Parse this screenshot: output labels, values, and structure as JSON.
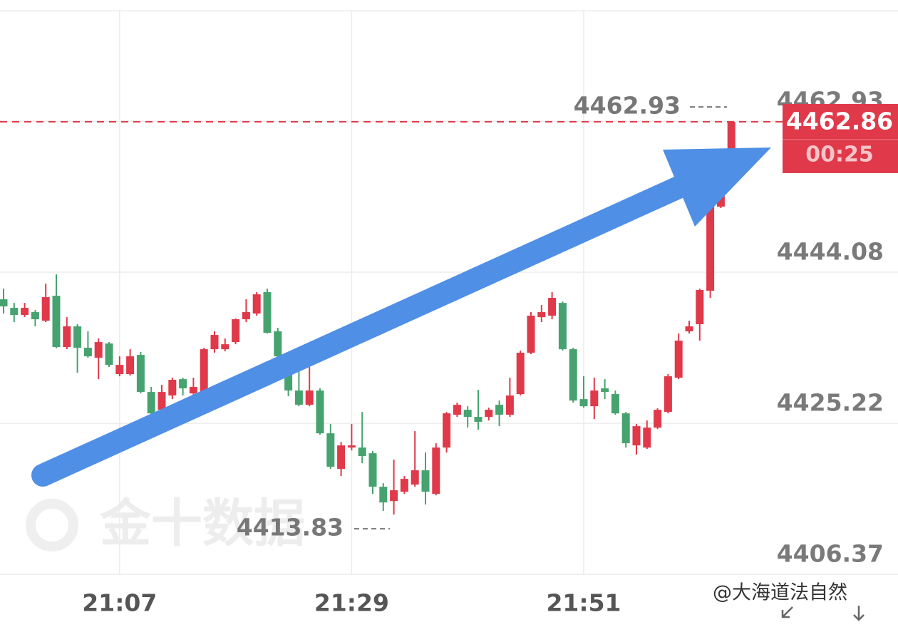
{
  "chart_data": {
    "type": "candlestick",
    "categories": [
      null,
      null,
      null,
      null,
      null,
      null,
      null,
      null,
      null,
      null,
      null,
      "21:07",
      null,
      null,
      null,
      null,
      null,
      null,
      null,
      null,
      null,
      null,
      null,
      null,
      null,
      null,
      null,
      null,
      null,
      null,
      null,
      null,
      null,
      "21:29",
      null,
      null,
      null,
      null,
      null,
      null,
      null,
      null,
      null,
      null,
      null,
      null,
      null,
      null,
      null,
      null,
      null,
      null,
      null,
      null,
      null,
      "21:51",
      null,
      null,
      null,
      null,
      null,
      null,
      null,
      null,
      null,
      null,
      null,
      null,
      null,
      null
    ],
    "open": [
      4440.7,
      4439.63,
      4438.74,
      4439.1,
      4438.03,
      4441.14,
      4434.74,
      4437.32,
      4434.65,
      4433.4,
      4435.18,
      4431.36,
      4431.36,
      4433.76,
      4429.13,
      4426.91,
      4428.69,
      4430.73,
      4428.95,
      4429.13,
      4434.47,
      4434.47,
      4435.36,
      4438.21,
      4438.92,
      4441.59,
      4436.7,
      4433.58,
      4429.31,
      4427.53,
      4429.31,
      4423.97,
      4419.52,
      4422.19,
      4422.19,
      4421.48,
      4417.3,
      4415.52,
      4416.68,
      4417.57,
      4419.35,
      4416.41,
      4422.19,
      4426.29,
      4426.91,
      4426.02,
      4426.02,
      4427.53,
      4426.29,
      4428.87,
      4434.03,
      4438.47,
      4438.65,
      4440.25,
      4434.47,
      4428.24,
      4427.35,
      4429.58,
      4428.87,
      4426.46,
      4422.46,
      4422.19,
      4424.68,
      4426.64,
      4430.91,
      4436.7,
      4437.59,
      4441.77,
      4452.27,
      4458.05
    ],
    "high": [
      4442.03,
      4440.25,
      4440.25,
      4439.36,
      4442.66,
      4443.81,
      4438.47,
      4437.59,
      4436.7,
      4435.81,
      4435.36,
      4433.58,
      4434.47,
      4434.12,
      4429.76,
      4430.02,
      4430.91,
      4430.91,
      4430.91,
      4434.65,
      4436.7,
      4435.81,
      4438.3,
      4440.7,
      4441.59,
      4442.03,
      4437.14,
      4434.03,
      4431.8,
      4432.25,
      4429.58,
      4425.13,
      4422.9,
      4425.13,
      4426.64,
      4421.75,
      4417.74,
      4420.68,
      4418.63,
      4424.24,
      4421.57,
      4422.73,
      4426.64,
      4427.8,
      4427.35,
      4429.4,
      4427.17,
      4428.06,
      4430.91,
      4434.29,
      4439.1,
      4439.99,
      4441.59,
      4440.43,
      4434.65,
      4431.09,
      4430.91,
      4430.73,
      4429.31,
      4426.64,
      4425.13,
      4425.57,
      4427.09,
      4431.36,
      4436.43,
      4438.03,
      4442.03,
      4453.16,
      4458.49,
      4462.93
    ],
    "low": [
      4438.92,
      4437.85,
      4438.47,
      4437.32,
      4437.85,
      4434.6,
      4434.47,
      4431.53,
      4433.4,
      4430.73,
      4432.25,
      4431.09,
      4431.18,
      4428.95,
      4426.29,
      4426.64,
      4428.24,
      4428.69,
      4428.69,
      4428.69,
      4434.03,
      4434.2,
      4435.09,
      4437.85,
      4438.65,
      4436.43,
      4433.4,
      4428.6,
      4427.35,
      4427.35,
      4423.79,
      4419.52,
      4418.63,
      4421.84,
      4420.24,
      4416.41,
      4414.28,
      4413.83,
      4416.41,
      4417.3,
      4415.08,
      4416.23,
      4421.57,
      4426.02,
      4424.68,
      4424.42,
      4425.57,
      4424.86,
      4426.02,
      4428.69,
      4433.85,
      4437.85,
      4438.21,
      4434.29,
      4427.8,
      4427.17,
      4425.75,
      4428.24,
      4426.29,
      4422.19,
      4421.3,
      4422.02,
      4424.51,
      4426.46,
      4430.73,
      4436.43,
      4435.54,
      4440.88,
      4452.09,
      4457.78
    ],
    "close": [
      4439.81,
      4438.74,
      4439.63,
      4438.21,
      4440.97,
      4434.74,
      4437.32,
      4434.65,
      4433.58,
      4435.36,
      4432.51,
      4432.51,
      4433.58,
      4429.13,
      4426.46,
      4429.13,
      4430.65,
      4429.58,
      4429.76,
      4434.47,
      4436.25,
      4435.09,
      4438.21,
      4439.1,
      4441.32,
      4436.52,
      4433.58,
      4429.31,
      4427.53,
      4429.31,
      4423.97,
      4419.79,
      4422.46,
      4422.46,
      4421.13,
      4417.3,
      4415.34,
      4416.86,
      4418.28,
      4419.35,
      4416.68,
      4422.19,
      4426.46,
      4427.53,
      4426.02,
      4425.4,
      4426.91,
      4426.29,
      4428.69,
      4434.03,
      4438.65,
      4439.1,
      4440.88,
      4434.47,
      4428.06,
      4427.35,
      4429.31,
      4429.13,
      4426.46,
      4422.73,
      4424.86,
      4424.68,
      4426.91,
      4431.09,
      4435.54,
      4437.32,
      4441.86,
      4452.71,
      4458.05,
      4462.86
    ],
    "ylim": [
      4406.37,
      4476.73
    ],
    "yticks": [
      4406.37,
      4425.22,
      4444.08,
      4462.93
    ],
    "grid": true,
    "up_color": "#e0394a",
    "down_color": "#46a36f",
    "last_price": 4462.86,
    "countdown": "00:25",
    "high_label": 4462.93,
    "low_label": 4413.83
  },
  "watermark": "金十数据",
  "credit": "@大海道法自然"
}
